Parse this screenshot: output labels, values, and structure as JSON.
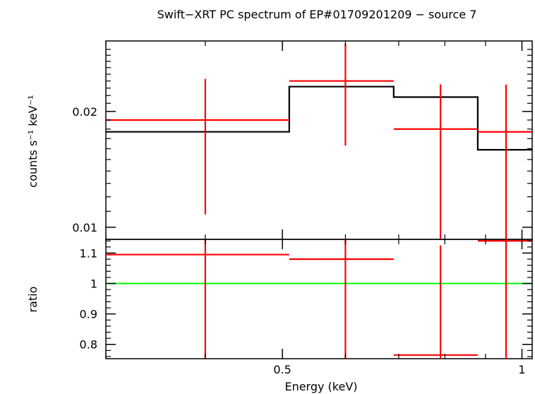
{
  "chart_data": {
    "title": "Swift−XRT PC spectrum of EP#01709201209 − source 7",
    "xlabel": "Energy (keV)",
    "colors": {
      "data": "#ff0000",
      "model": "#000000",
      "unity": "#00ff00",
      "frame": "#000000"
    },
    "top_panel": {
      "type": "scatter",
      "ylabel": "counts s⁻¹ keV⁻¹",
      "yscale": "log",
      "ylim": [
        0.0093,
        0.0305
      ],
      "yticks": [
        0.01,
        0.02
      ],
      "yticklabels": [
        "0.01",
        "0.02"
      ],
      "data": [
        {
          "xlo": 0.3,
          "xhi": 0.51,
          "x": 0.4,
          "y": 0.019,
          "ylo": 0.0108,
          "yhi": 0.0243
        },
        {
          "xlo": 0.51,
          "xhi": 0.69,
          "x": 0.6,
          "y": 0.024,
          "ylo": 0.0163,
          "yhi": 0.03
        },
        {
          "xlo": 0.69,
          "xhi": 0.88,
          "x": 0.79,
          "y": 0.018,
          "ylo": 0.0093,
          "yhi": 0.0235
        },
        {
          "xlo": 0.88,
          "xhi": 1.03,
          "x": 0.955,
          "y": 0.0177,
          "ylo": 0.0093,
          "yhi": 0.0235
        }
      ],
      "model": [
        {
          "xlo": 0.3,
          "xhi": 0.51,
          "y": 0.0177
        },
        {
          "xlo": 0.51,
          "xhi": 0.69,
          "y": 0.0232
        },
        {
          "xlo": 0.69,
          "xhi": 0.88,
          "y": 0.0218
        },
        {
          "xlo": 0.88,
          "xhi": 1.03,
          "y": 0.0159
        }
      ]
    },
    "bottom_panel": {
      "type": "scatter",
      "ylabel": "ratio",
      "ylim": [
        0.753,
        1.145
      ],
      "yticks": [
        0.8,
        0.9,
        1.0,
        1.1
      ],
      "yticklabels": [
        "0.8",
        "0.9",
        "1",
        "1.1"
      ],
      "unity": 1.0,
      "data": [
        {
          "xlo": 0.3,
          "xhi": 0.51,
          "x": 0.4,
          "y": 1.095,
          "ylo": 0.753,
          "yhi": 1.145
        },
        {
          "xlo": 0.51,
          "xhi": 0.69,
          "x": 0.6,
          "y": 1.08,
          "ylo": 0.753,
          "yhi": 1.145
        },
        {
          "xlo": 0.69,
          "xhi": 0.88,
          "x": 0.79,
          "y": 0.765,
          "ylo": 0.753,
          "yhi": 1.125
        },
        {
          "xlo": 0.88,
          "xhi": 1.03,
          "x": 0.955,
          "y": 1.14,
          "ylo": 0.753,
          "yhi": 1.145
        }
      ]
    },
    "x_axis": {
      "scale": "log",
      "xlim": [
        0.3,
        1.03
      ],
      "ticks": [
        0.5,
        1.0
      ],
      "ticklabels": [
        "0.5",
        "1"
      ],
      "minor_ticks": [
        0.3,
        0.4,
        0.6,
        0.7,
        0.8,
        0.9
      ]
    }
  }
}
